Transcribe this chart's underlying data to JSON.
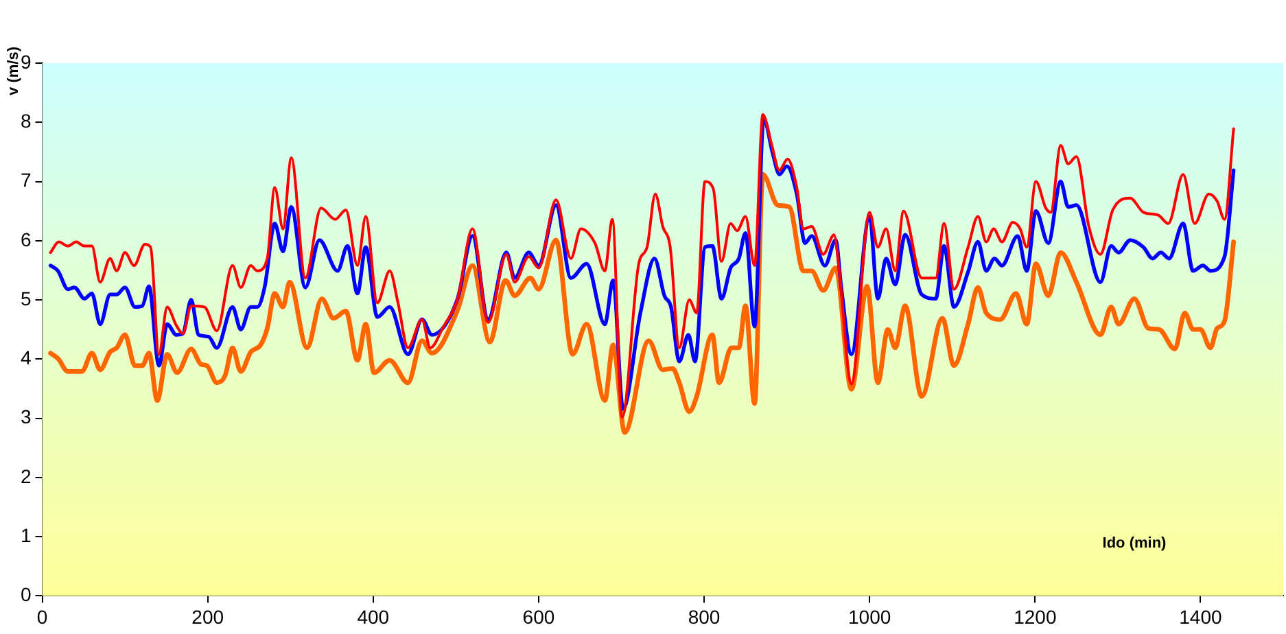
{
  "chart_data": {
    "type": "line",
    "xlabel": "Ido (min)",
    "ylabel": "v (m/s)",
    "xlim": [
      0,
      1500
    ],
    "xticks": [
      0,
      200,
      400,
      600,
      800,
      1000,
      1200,
      1400
    ],
    "ylim": [
      0,
      9
    ],
    "yticks": [
      0,
      1,
      2,
      3,
      4,
      5,
      6,
      7,
      8,
      9
    ],
    "grid": false,
    "legend": false,
    "marker": "none",
    "line_style": "solid",
    "series": [
      {
        "color": "#ff0000",
        "x": [
          10,
          20,
          31,
          41,
          51,
          60,
          70,
          82,
          90,
          100,
          111,
          124,
          131,
          141,
          151,
          162,
          170,
          180,
          196,
          211,
          230,
          240,
          252,
          260,
          272,
          281,
          291,
          301,
          318,
          337,
          354,
          367,
          381,
          391,
          405,
          420,
          430,
          442,
          459,
          469,
          485,
          502,
          520,
          539,
          561,
          571,
          588,
          600,
          621,
          639,
          651,
          668,
          680,
          689,
          701,
          721,
          731,
          741,
          750,
          759,
          770,
          782,
          791,
          801,
          811,
          821,
          832,
          840,
          850,
          861,
          871,
          881,
          891,
          901,
          912,
          920,
          930,
          944,
          957,
          963,
          978,
          1000,
          1010,
          1020,
          1031,
          1041,
          1063,
          1080,
          1090,
          1102,
          1119,
          1131,
          1141,
          1150,
          1160,
          1173,
          1182,
          1190,
          1201,
          1213,
          1219,
          1231,
          1240,
          1250,
          1265,
          1279,
          1294,
          1315,
          1331,
          1349,
          1361,
          1379,
          1393,
          1410,
          1420,
          1429,
          1440
        ],
        "values": [
          5.8,
          5.98,
          5.91,
          5.98,
          5.91,
          5.91,
          5.3,
          5.7,
          5.49,
          5.8,
          5.58,
          5.94,
          5.89,
          4.08,
          4.88,
          4.57,
          4.43,
          4.9,
          4.88,
          4.48,
          5.58,
          5.21,
          5.58,
          5.49,
          5.7,
          6.9,
          6.2,
          7.4,
          5.37,
          6.55,
          6.36,
          6.52,
          5.58,
          6.41,
          4.95,
          5.49,
          4.95,
          4.19,
          4.67,
          4.19,
          4.55,
          5.02,
          6.2,
          4.62,
          5.77,
          5.3,
          5.73,
          5.54,
          6.69,
          5.7,
          6.2,
          5.96,
          5.49,
          6.36,
          3.02,
          5.61,
          5.89,
          6.79,
          6.24,
          5.89,
          4.19,
          5.0,
          4.78,
          7.0,
          6.88,
          5.65,
          6.29,
          6.17,
          6.41,
          5.58,
          8.13,
          7.66,
          7.19,
          7.38,
          6.9,
          6.2,
          6.24,
          5.77,
          6.1,
          5.54,
          3.58,
          6.48,
          5.89,
          6.2,
          5.49,
          6.5,
          5.37,
          5.37,
          6.29,
          5.18,
          5.89,
          6.41,
          5.98,
          6.2,
          5.98,
          6.31,
          6.2,
          5.89,
          7.0,
          6.55,
          6.48,
          7.61,
          7.3,
          7.42,
          6.24,
          5.77,
          6.52,
          6.72,
          6.48,
          6.43,
          6.29,
          7.12,
          6.29,
          6.79,
          6.67,
          6.36,
          7.89
        ]
      },
      {
        "color": "#0000ff",
        "x": [
          10,
          19,
          31,
          39,
          51,
          60,
          70,
          82,
          90,
          100,
          112,
          121,
          129,
          141,
          151,
          162,
          170,
          180,
          189,
          201,
          211,
          230,
          240,
          252,
          260,
          269,
          281,
          291,
          301,
          318,
          335,
          357,
          369,
          381,
          391,
          405,
          420,
          442,
          459,
          471,
          502,
          520,
          539,
          561,
          571,
          588,
          600,
          621,
          639,
          658,
          680,
          690,
          702,
          723,
          740,
          752,
          760,
          770,
          781,
          789,
          801,
          810,
          821,
          832,
          842,
          850,
          861,
          872,
          883,
          891,
          900,
          912,
          922,
          930,
          946,
          959,
          966,
          978,
          1000,
          1010,
          1020,
          1031,
          1043,
          1063,
          1080,
          1090,
          1102,
          1119,
          1131,
          1141,
          1151,
          1160,
          1179,
          1190,
          1201,
          1216,
          1231,
          1240,
          1250,
          1279,
          1292,
          1301,
          1315,
          1331,
          1342,
          1352,
          1362,
          1379,
          1391,
          1403,
          1412,
          1429,
          1440
        ],
        "values": [
          5.58,
          5.49,
          5.18,
          5.21,
          5.02,
          5.11,
          4.59,
          5.09,
          5.09,
          5.21,
          4.88,
          4.9,
          5.23,
          3.89,
          4.59,
          4.41,
          4.43,
          5.0,
          4.41,
          4.38,
          4.19,
          4.88,
          4.5,
          4.88,
          4.88,
          5.23,
          6.29,
          5.82,
          6.57,
          5.21,
          6.01,
          5.49,
          5.91,
          5.11,
          5.89,
          4.71,
          4.88,
          4.08,
          4.67,
          4.41,
          5.02,
          6.08,
          4.67,
          5.8,
          5.37,
          5.8,
          5.58,
          6.6,
          5.37,
          5.61,
          4.59,
          5.33,
          3.16,
          4.78,
          5.7,
          5.07,
          4.88,
          3.96,
          4.41,
          3.96,
          5.89,
          5.91,
          5.02,
          5.54,
          5.7,
          6.13,
          4.55,
          8.06,
          7.47,
          7.12,
          7.26,
          6.79,
          5.96,
          6.08,
          5.58,
          6.01,
          5.18,
          4.08,
          6.41,
          5.02,
          5.7,
          5.26,
          6.1,
          5.09,
          5.02,
          5.91,
          4.88,
          5.47,
          5.98,
          5.49,
          5.7,
          5.58,
          6.08,
          5.49,
          6.5,
          5.96,
          7.0,
          6.57,
          6.6,
          5.3,
          5.91,
          5.8,
          6.01,
          5.89,
          5.7,
          5.8,
          5.7,
          6.29,
          5.49,
          5.58,
          5.49,
          5.73,
          7.19
        ]
      },
      {
        "color": "#ff6600",
        "x": [
          10,
          19,
          31,
          48,
          60,
          70,
          82,
          90,
          100,
          112,
          121,
          129,
          139,
          151,
          163,
          180,
          192,
          199,
          211,
          221,
          230,
          240,
          252,
          264,
          272,
          281,
          291,
          299,
          320,
          338,
          352,
          367,
          381,
          391,
          401,
          420,
          442,
          459,
          471,
          502,
          520,
          541,
          560,
          571,
          590,
          600,
          621,
          641,
          658,
          680,
          690,
          704,
          733,
          750,
          762,
          770,
          782,
          791,
          810,
          818,
          833,
          842,
          850,
          861,
          871,
          889,
          903,
          920,
          930,
          944,
          959,
          978,
          997,
          1010,
          1022,
          1031,
          1043,
          1063,
          1088,
          1102,
          1119,
          1131,
          1141,
          1158,
          1177,
          1190,
          1201,
          1216,
          1231,
          1250,
          1279,
          1292,
          1301,
          1320,
          1337,
          1350,
          1369,
          1381,
          1391,
          1400,
          1412,
          1420,
          1429,
          1440
        ],
        "values": [
          4.1,
          4.01,
          3.79,
          3.79,
          4.1,
          3.82,
          4.12,
          4.19,
          4.41,
          3.89,
          3.89,
          4.1,
          3.3,
          4.08,
          3.77,
          4.17,
          3.91,
          3.89,
          3.6,
          3.72,
          4.19,
          3.79,
          4.12,
          4.24,
          4.52,
          5.11,
          4.88,
          5.3,
          4.19,
          5.02,
          4.69,
          4.81,
          3.98,
          4.59,
          3.77,
          3.98,
          3.6,
          4.31,
          4.1,
          4.83,
          5.58,
          4.29,
          5.33,
          5.07,
          5.37,
          5.18,
          6.01,
          4.08,
          4.59,
          3.3,
          4.24,
          2.76,
          4.31,
          3.82,
          3.84,
          3.6,
          3.11,
          3.37,
          4.41,
          3.6,
          4.19,
          4.19,
          4.9,
          3.25,
          7.12,
          6.6,
          6.57,
          5.49,
          5.49,
          5.16,
          5.54,
          3.49,
          5.23,
          3.6,
          4.5,
          4.19,
          4.9,
          3.37,
          4.69,
          3.89,
          4.59,
          5.21,
          4.78,
          4.67,
          5.11,
          4.59,
          5.61,
          5.07,
          5.8,
          5.3,
          4.41,
          4.88,
          4.59,
          5.02,
          4.52,
          4.5,
          4.17,
          4.78,
          4.5,
          4.5,
          4.19,
          4.52,
          4.64,
          5.98
        ]
      }
    ]
  }
}
